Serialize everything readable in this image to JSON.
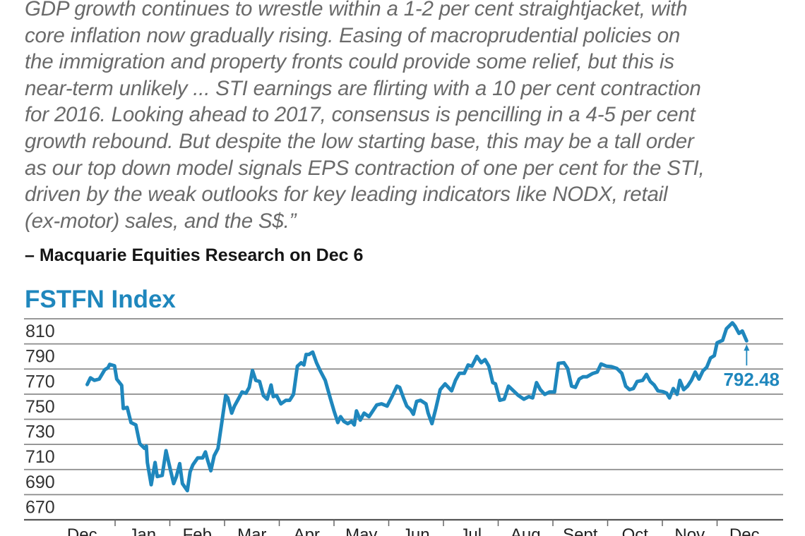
{
  "quote": {
    "lines": [
      "GDP growth continues to wrestle within a 1-2 per cent straightjacket, with",
      "core inflation now gradually rising. Easing of macroprudential policies on",
      "the immigration and property fronts could provide some relief, but this is",
      "near-term unlikely ... STI earnings are flirting with a 10 per cent contraction",
      "for 2016. Looking ahead to 2017, consensus is pencilling in a 4-5 per cent",
      "growth rebound. But despite the low starting base, this may be a tall order",
      "as our top down model signals EPS contraction of one per cent for the STI,",
      "driven by the weak outlooks for key leading indicators like NODX, retail",
      "(ex-motor) sales, and the S$.”"
    ],
    "attribution": "– Macquarie Equities Research on Dec 6"
  },
  "chart_data": {
    "type": "line",
    "title": "FSTFN Index",
    "xlabel": "",
    "ylabel": "",
    "ylim": [
      650,
      810
    ],
    "yticks": [
      810,
      790,
      770,
      750,
      730,
      710,
      690,
      670
    ],
    "categories": [
      "Dec",
      "Jan",
      "Feb",
      "Mar",
      "Apr",
      "May",
      "Jun",
      "Jul",
      "Aug",
      "Sept",
      "Oct",
      "Nov",
      "Dec"
    ],
    "grid": true,
    "line_color": "#1f87bd",
    "last_value_label": "792.48",
    "series": [
      {
        "name": "FSTFN Index",
        "x_unit": "months from start of Dec 2015",
        "points": [
          [
            0.49,
            757.7
          ],
          [
            0.55,
            763
          ],
          [
            0.62,
            761
          ],
          [
            0.71,
            762
          ],
          [
            0.81,
            769.4
          ],
          [
            0.87,
            771
          ],
          [
            0.9,
            773.7
          ],
          [
            0.99,
            772.6
          ],
          [
            1.03,
            762
          ],
          [
            1.12,
            757
          ],
          [
            1.15,
            738.6
          ],
          [
            1.22,
            739.5
          ],
          [
            1.29,
            727.4
          ],
          [
            1.38,
            725.5
          ],
          [
            1.45,
            710.6
          ],
          [
            1.54,
            706.8
          ],
          [
            1.57,
            708.7
          ],
          [
            1.59,
            695.6
          ],
          [
            1.66,
            677.9
          ],
          [
            1.73,
            695.6
          ],
          [
            1.77,
            684.4
          ],
          [
            1.86,
            685.3
          ],
          [
            1.93,
            705
          ],
          [
            1.98,
            695.6
          ],
          [
            2.07,
            678.8
          ],
          [
            2.12,
            684.4
          ],
          [
            2.18,
            694.7
          ],
          [
            2.23,
            678.8
          ],
          [
            2.32,
            673.2
          ],
          [
            2.37,
            688.1
          ],
          [
            2.42,
            693.7
          ],
          [
            2.51,
            699.3
          ],
          [
            2.6,
            699.3
          ],
          [
            2.65,
            704
          ],
          [
            2.69,
            697.5
          ],
          [
            2.75,
            689
          ],
          [
            2.81,
            701
          ],
          [
            2.88,
            706.8
          ],
          [
            2.95,
            727.4
          ],
          [
            3.02,
            748.9
          ],
          [
            3.06,
            747
          ],
          [
            3.13,
            734.9
          ],
          [
            3.18,
            740.5
          ],
          [
            3.25,
            746
          ],
          [
            3.32,
            751.7
          ],
          [
            3.39,
            750.7
          ],
          [
            3.45,
            755.4
          ],
          [
            3.51,
            768.9
          ],
          [
            3.57,
            761
          ],
          [
            3.64,
            760.1
          ],
          [
            3.71,
            748.9
          ],
          [
            3.78,
            746
          ],
          [
            3.85,
            757.3
          ],
          [
            3.89,
            748
          ],
          [
            3.95,
            749
          ],
          [
            4.03,
            742.3
          ],
          [
            4.12,
            745.1
          ],
          [
            4.19,
            745.1
          ],
          [
            4.26,
            749.8
          ],
          [
            4.33,
            772.2
          ],
          [
            4.4,
            775
          ],
          [
            4.45,
            773.2
          ],
          [
            4.49,
            781.6
          ],
          [
            4.54,
            781.6
          ],
          [
            4.61,
            783.5
          ],
          [
            4.68,
            775
          ],
          [
            4.75,
            768.5
          ],
          [
            4.84,
            761
          ],
          [
            4.93,
            747
          ],
          [
            5.0,
            736.7
          ],
          [
            5.07,
            727.4
          ],
          [
            5.12,
            732.1
          ],
          [
            5.18,
            728.3
          ],
          [
            5.25,
            726.5
          ],
          [
            5.32,
            728.3
          ],
          [
            5.37,
            725.5
          ],
          [
            5.41,
            736.7
          ],
          [
            5.48,
            729.3
          ],
          [
            5.55,
            734.9
          ],
          [
            5.64,
            732.1
          ],
          [
            5.71,
            736.7
          ],
          [
            5.78,
            741.4
          ],
          [
            5.87,
            742.3
          ],
          [
            5.97,
            740.5
          ],
          [
            6.06,
            748
          ],
          [
            6.15,
            756.4
          ],
          [
            6.2,
            755.4
          ],
          [
            6.27,
            747
          ],
          [
            6.33,
            740.5
          ],
          [
            6.4,
            737.7
          ],
          [
            6.45,
            734
          ],
          [
            6.51,
            744.2
          ],
          [
            6.58,
            745.1
          ],
          [
            6.68,
            742.3
          ],
          [
            6.72,
            734.9
          ],
          [
            6.79,
            726.5
          ],
          [
            6.86,
            738.6
          ],
          [
            6.94,
            753.6
          ],
          [
            7.03,
            758.2
          ],
          [
            7.15,
            752.6
          ],
          [
            7.22,
            761
          ],
          [
            7.29,
            766.6
          ],
          [
            7.38,
            766.6
          ],
          [
            7.45,
            773.2
          ],
          [
            7.52,
            772.2
          ],
          [
            7.61,
            780.1
          ],
          [
            7.69,
            775
          ],
          [
            7.76,
            777.5
          ],
          [
            7.83,
            772.2
          ],
          [
            7.9,
            759.2
          ],
          [
            7.95,
            758.2
          ],
          [
            8.03,
            745.1
          ],
          [
            8.11,
            746
          ],
          [
            8.19,
            756.4
          ],
          [
            8.28,
            752.6
          ],
          [
            8.37,
            748.9
          ],
          [
            8.47,
            746
          ],
          [
            8.56,
            748
          ],
          [
            8.63,
            747
          ],
          [
            8.7,
            759.2
          ],
          [
            8.77,
            753.6
          ],
          [
            8.85,
            749.8
          ],
          [
            8.94,
            751.7
          ],
          [
            9.03,
            751.7
          ],
          [
            9.1,
            774.5
          ],
          [
            9.2,
            775
          ],
          [
            9.27,
            770.4
          ],
          [
            9.34,
            756.4
          ],
          [
            9.41,
            755.4
          ],
          [
            9.48,
            762
          ],
          [
            9.55,
            763.8
          ],
          [
            9.62,
            763.8
          ],
          [
            9.72,
            766.3
          ],
          [
            9.81,
            767.6
          ],
          [
            9.88,
            774
          ],
          [
            9.98,
            772.2
          ],
          [
            10.07,
            771.9
          ],
          [
            10.17,
            770.4
          ],
          [
            10.26,
            766.6
          ],
          [
            10.33,
            756.4
          ],
          [
            10.4,
            753.6
          ],
          [
            10.47,
            754.5
          ],
          [
            10.54,
            760.1
          ],
          [
            10.64,
            761
          ],
          [
            10.71,
            765.7
          ],
          [
            10.78,
            760.1
          ],
          [
            10.85,
            757.3
          ],
          [
            10.92,
            752.6
          ],
          [
            11.01,
            752
          ],
          [
            11.08,
            750.7
          ],
          [
            11.13,
            747
          ],
          [
            11.2,
            754.5
          ],
          [
            11.27,
            749.8
          ],
          [
            11.32,
            761
          ],
          [
            11.39,
            753.6
          ],
          [
            11.46,
            756.4
          ],
          [
            11.53,
            761
          ],
          [
            11.6,
            767.6
          ],
          [
            11.67,
            762
          ],
          [
            11.74,
            768.5
          ],
          [
            11.81,
            771.4
          ],
          [
            11.88,
            778.8
          ],
          [
            11.95,
            780.7
          ],
          [
            12.0,
            790.9
          ],
          [
            12.1,
            792.8
          ],
          [
            12.17,
            802.1
          ],
          [
            12.28,
            806.8
          ],
          [
            12.33,
            804
          ],
          [
            12.4,
            798.4
          ],
          [
            12.46,
            800.3
          ],
          [
            12.54,
            792.48
          ]
        ]
      }
    ]
  }
}
